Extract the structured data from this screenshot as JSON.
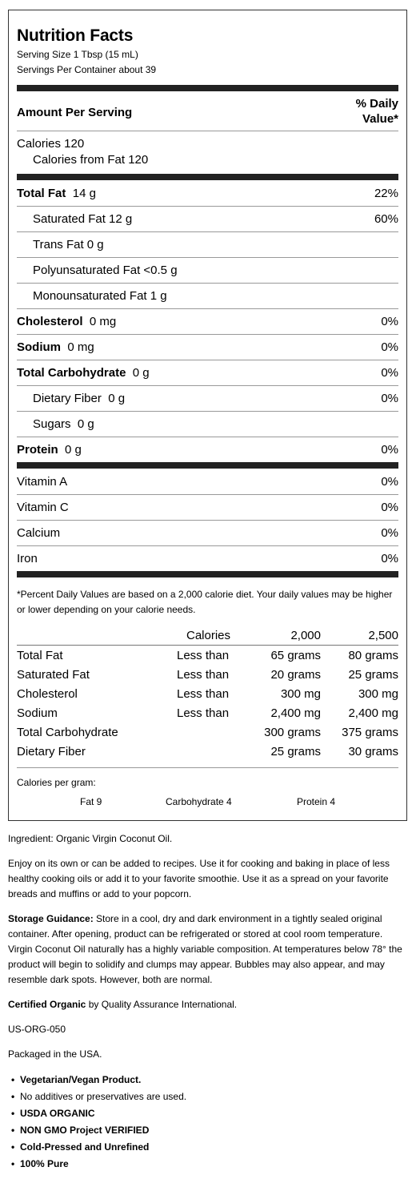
{
  "label": {
    "title": "Nutrition Facts",
    "serving_size": "Serving Size 1 Tbsp (15 mL)",
    "servings_per_container": "Servings Per Container about 39",
    "amount_per_serving": "Amount Per Serving",
    "daily_value_line1": "% Daily",
    "daily_value_line2": "Value*",
    "calories": "Calories 120",
    "calories_from_fat": "Calories from Fat 120",
    "nutrients": [
      {
        "name": "Total Fat",
        "amount": "14 g",
        "dv": "22%"
      },
      {
        "name": "Saturated Fat 12 g",
        "dv": "60%"
      },
      {
        "name": "Trans Fat 0 g",
        "dv": ""
      },
      {
        "name": "Polyunsaturated Fat <0.5 g",
        "dv": ""
      },
      {
        "name": "Monounsaturated Fat 1 g",
        "dv": ""
      },
      {
        "name": "Cholesterol",
        "amount": "0 mg",
        "dv": "0%"
      },
      {
        "name": "Sodium",
        "amount": "0 mg",
        "dv": "0%"
      },
      {
        "name": "Total Carbohydrate",
        "amount": "0 g",
        "dv": "0%"
      },
      {
        "name": "Dietary Fiber",
        "amount": "0 g",
        "dv": "0%"
      },
      {
        "name": "Sugars",
        "amount": "0 g",
        "dv": ""
      },
      {
        "name": "Protein",
        "amount": "0 g",
        "dv": "0%"
      }
    ],
    "vitamins": [
      {
        "name": "Vitamin A",
        "dv": "0%"
      },
      {
        "name": "Vitamin C",
        "dv": "0%"
      },
      {
        "name": "Calcium",
        "dv": "0%"
      },
      {
        "name": "Iron",
        "dv": "0%"
      }
    ],
    "footnote": "*Percent Daily Values are based on a 2,000 calorie diet. Your daily values may be higher or lower depending on your calorie needs.",
    "dv_table": {
      "header": {
        "label": "Calories",
        "col1": "2,000",
        "col2": "2,500"
      },
      "rows": [
        {
          "name": "Total Fat",
          "qual": "Less than",
          "v1": "65 grams",
          "v2": "80 grams"
        },
        {
          "name": "Saturated Fat",
          "qual": "Less than",
          "v1": "20 grams",
          "v2": "25 grams"
        },
        {
          "name": "Cholesterol",
          "qual": "Less than",
          "v1": "300 mg",
          "v2": "300 mg"
        },
        {
          "name": "Sodium",
          "qual": "Less than",
          "v1": "2,400 mg",
          "v2": "2,400 mg"
        },
        {
          "name": "Total Carbohydrate",
          "qual": "",
          "v1": "300 grams",
          "v2": "375 grams"
        },
        {
          "name": "Dietary Fiber",
          "qual": "",
          "v1": "25 grams",
          "v2": "30 grams"
        }
      ]
    },
    "calories_per_gram": "Calories per gram:",
    "cpg_fat": "Fat 9",
    "cpg_carb": "Carbohydrate 4",
    "cpg_protein": "Protein 4"
  },
  "info": {
    "ingredient": "Ingredient: Organic Virgin Coconut Oil.",
    "enjoy": "Enjoy on its own or can be added to recipes. Use it for cooking and baking in place of less healthy cooking oils or add it to your favorite smoothie. Use it as a spread on your favorite breads and muffins or add to your popcorn.",
    "storage_label": "Storage Guidance:",
    "storage_text": " Store in a cool, dry and dark environment in a tightly sealed original container. After opening, product can be refrigerated or stored at cool room temperature. Virgin Coconut Oil naturally has a highly variable composition. At temperatures below 78° the product will begin to solidify and clumps may appear. Bubbles may also appear, and may resemble dark spots. However, both are normal.",
    "certified_label": "Certified Organic",
    "certified_text": " by Quality Assurance International.",
    "code": "US-ORG-050",
    "packaged": "Packaged in the USA.",
    "bullets": [
      "Vegetarian/Vegan Product.",
      "No additives or preservatives are used.",
      "USDA ORGANIC",
      "NON GMO Project VERIFIED",
      "Cold-Pressed and Unrefined",
      "100% Pure"
    ]
  }
}
